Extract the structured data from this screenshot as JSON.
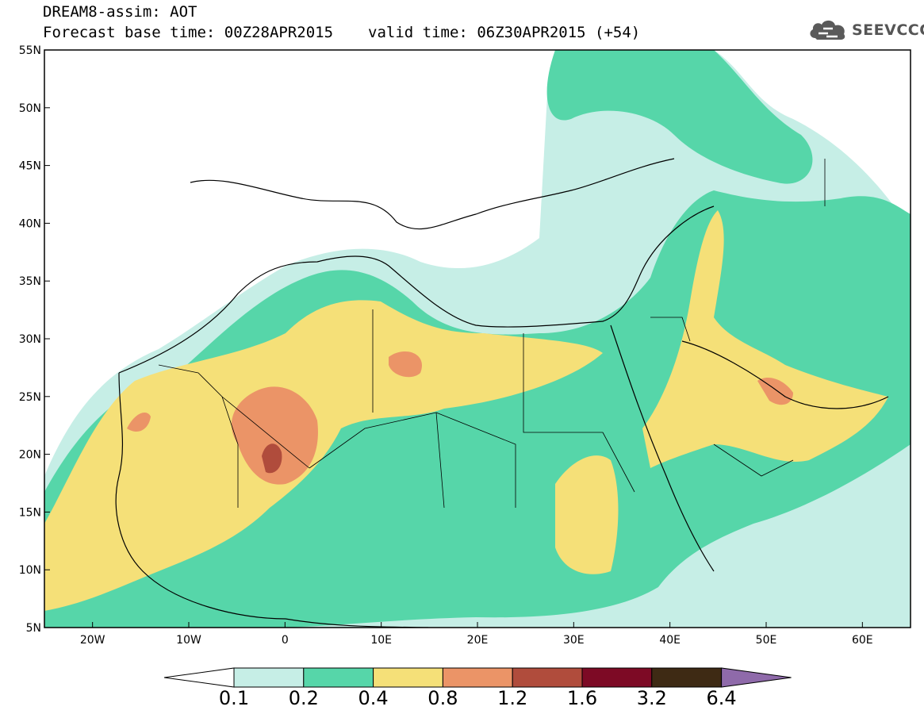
{
  "header": {
    "title": "DREAM8-assim: AOT",
    "base_time": "Forecast base time: 00Z28APR2015",
    "valid_time": "valid time: 06Z30APR2015 (+54)"
  },
  "logo": {
    "text": "SEEVCCC",
    "icon": "cloud-icon"
  },
  "map": {
    "lon_range": [
      -25,
      65
    ],
    "lat_range": [
      5,
      55
    ],
    "lat_ticks": [
      "55N",
      "50N",
      "45N",
      "40N",
      "35N",
      "30N",
      "25N",
      "20N",
      "15N",
      "10N",
      "5N"
    ],
    "lon_ticks": [
      "20W",
      "10W",
      "0",
      "10E",
      "20E",
      "30E",
      "40E",
      "50E",
      "60E"
    ]
  },
  "colorbar": {
    "labels": [
      "0.1",
      "0.2",
      "0.4",
      "0.8",
      "1.2",
      "1.6",
      "3.2",
      "6.4"
    ],
    "colors": [
      "#ffffff",
      "#c6eee6",
      "#56d6a9",
      "#f5e078",
      "#eb9467",
      "#b04c3c",
      "#7d0a25",
      "#3e2a14",
      "#8f6aaa"
    ]
  }
}
